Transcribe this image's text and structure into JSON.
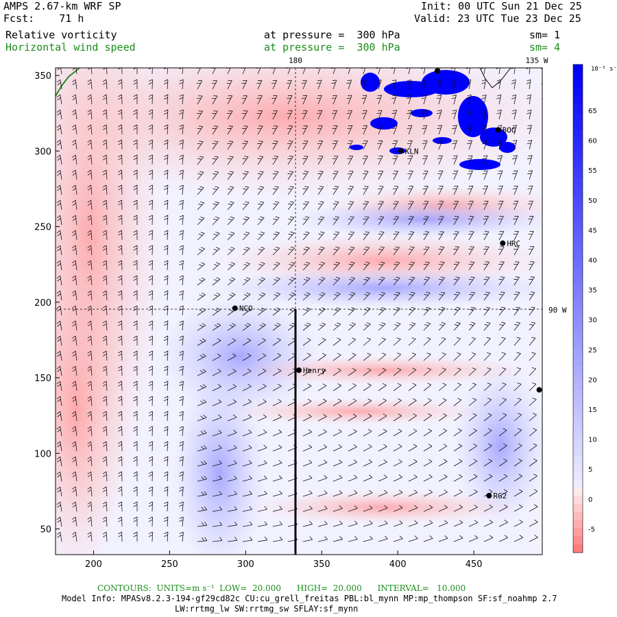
{
  "header": {
    "model_line": "AMPS 2.67-km WRF SP",
    "fcst_line": "Fcst:    71 h",
    "init_line": "Init: 00 UTC Sun 21 Dec 25",
    "valid_line": "Valid: 23 UTC Tue 23 Dec 25",
    "field1": "Relative vorticity",
    "field1_level": "at pressure =  300 hPa",
    "field1_sm": "sm= 1",
    "field2": "Horizontal wind speed",
    "field2_level": "at pressure =  300 hPa",
    "field2_sm": "sm= 4"
  },
  "map": {
    "x_range": [
      175,
      495
    ],
    "y_range": [
      33,
      355
    ],
    "x_ticks": [
      "200",
      "250",
      "300",
      "350",
      "400",
      "450"
    ],
    "y_ticks": [
      "50",
      "100",
      "150",
      "200",
      "250",
      "300",
      "350"
    ],
    "meridian_180_label": "180",
    "meridian_135w_label": "135 W",
    "meridian_90w_label": "90 W",
    "stations": [
      {
        "name": "KLN",
        "x": 402,
        "y": 300
      },
      {
        "name": "BOG",
        "x": 466,
        "y": 314
      },
      {
        "name": "HRC",
        "x": 469,
        "y": 239
      },
      {
        "name": "NCO",
        "x": 293,
        "y": 196
      },
      {
        "name": "Henry",
        "x": 335,
        "y": 155
      },
      {
        "name": "RG2",
        "x": 460,
        "y": 72
      },
      {
        "name": "",
        "x": 493,
        "y": 142
      },
      {
        "name": "",
        "x": 426,
        "y": 353
      }
    ],
    "colors": {
      "positive_vorticity": "#ff8080",
      "negative_vorticity": "#0000ff",
      "coast": "#2a8a2a"
    }
  },
  "colorbar": {
    "unit": "10⁻⁵ s⁻¹",
    "tick_labels": [
      "65",
      "60",
      "55",
      "50",
      "45",
      "40",
      "35",
      "30",
      "25",
      "20",
      "15",
      "10",
      "5",
      "0",
      "-5"
    ]
  },
  "footer": {
    "contours": "CONTOURS:  UNITS=m s⁻¹  LOW=  20.000      HIGH=  20.000      INTERVAL=   10.000",
    "model_info": "Model Info: MPASv8.2.3-194-gf29cd82c CU:cu_grell_freitas PBL:bl_mynn MP:mp_thompson SF:sf_noahmp 2.7",
    "model_info2": "LW:rrtmg_lw SW:rrtmg_sw SFLAY:sf_mynn"
  }
}
